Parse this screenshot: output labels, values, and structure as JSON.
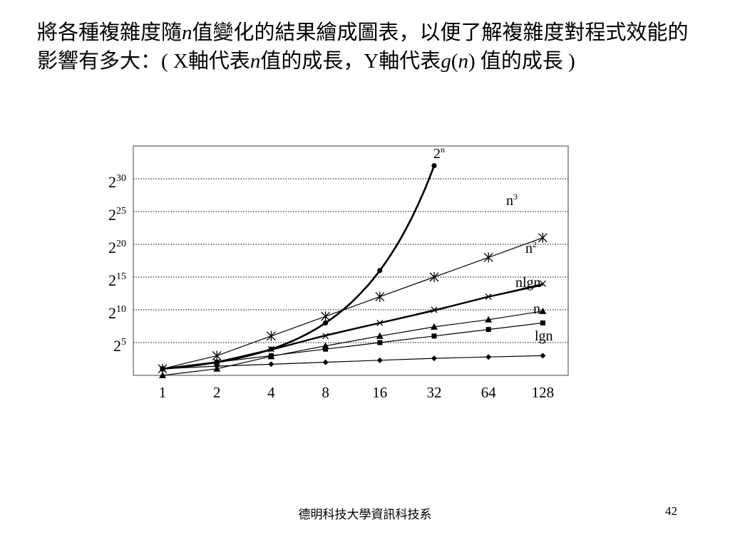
{
  "slide": {
    "title_parts": [
      {
        "text": "將各種複雜度隨",
        "italic": false
      },
      {
        "text": "n",
        "italic": true
      },
      {
        "text": "值變化的結果繪成圖表，以便了解複雜度對程式效能的影響有多大：( X軸代表",
        "italic": false
      },
      {
        "text": "n",
        "italic": true
      },
      {
        "text": "值的成長，Y軸代表",
        "italic": false
      },
      {
        "text": "g",
        "italic": true
      },
      {
        "text": "(",
        "italic": false
      },
      {
        "text": "n",
        "italic": true
      },
      {
        "text": ") 值的成長 )",
        "italic": false
      }
    ],
    "footer_center": "德明科技大學資訊科技系",
    "page_number": "42"
  },
  "chart_data": {
    "type": "line",
    "x_scale": "log2",
    "y_scale": "log2",
    "x_ticks": [
      1,
      2,
      4,
      8,
      16,
      32,
      64,
      128
    ],
    "x_tick_labels": [
      "1",
      "2",
      "4",
      "8",
      "16",
      "32",
      "64",
      "128"
    ],
    "y_ticks": [
      {
        "base": "2",
        "exp": "5"
      },
      {
        "base": "2",
        "exp": "10"
      },
      {
        "base": "2",
        "exp": "15"
      },
      {
        "base": "2",
        "exp": "20"
      },
      {
        "base": "2",
        "exp": "25"
      },
      {
        "base": "2",
        "exp": "30"
      }
    ],
    "y_tick_exponents": [
      5,
      10,
      15,
      20,
      25,
      30
    ],
    "ylim_exponent": [
      0,
      35
    ],
    "grid": "horizontal-dotted",
    "series": [
      {
        "name": "2",
        "sup": "n",
        "marker": "circle",
        "width": 2.6,
        "points": [
          [
            1,
            1
          ],
          [
            2,
            2
          ],
          [
            4,
            4
          ],
          [
            8,
            8
          ],
          [
            16,
            16
          ],
          [
            32,
            32
          ]
        ]
      },
      {
        "name": "n",
        "sup": "3",
        "marker": "star",
        "width": 1.2,
        "points": [
          [
            1,
            1
          ],
          [
            2,
            3
          ],
          [
            4,
            6
          ],
          [
            8,
            9
          ],
          [
            16,
            12
          ],
          [
            32,
            15
          ],
          [
            64,
            18
          ],
          [
            128,
            21
          ]
        ]
      },
      {
        "name": "n",
        "sup": "2",
        "marker": "cross",
        "width": 1.2,
        "points": [
          [
            1,
            1
          ],
          [
            2,
            2
          ],
          [
            4,
            4
          ],
          [
            8,
            6
          ],
          [
            16,
            8
          ],
          [
            32,
            10
          ],
          [
            64,
            12
          ],
          [
            128,
            14
          ]
        ]
      },
      {
        "name": "nlgn",
        "sup": "",
        "marker": "none",
        "width": 2.4,
        "points": [
          [
            1,
            1
          ],
          [
            2,
            2
          ],
          [
            4,
            3.9
          ],
          [
            8,
            6.1
          ],
          [
            16,
            8
          ],
          [
            32,
            9.9
          ],
          [
            64,
            12
          ],
          [
            128,
            13.8
          ]
        ]
      },
      {
        "name": "n",
        "sup": "",
        "marker": "triangle",
        "width": 1.2,
        "points": [
          [
            1,
            0
          ],
          [
            2,
            1
          ],
          [
            4,
            2.9
          ],
          [
            8,
            4.5
          ],
          [
            16,
            6
          ],
          [
            32,
            7.4
          ],
          [
            64,
            8.5
          ],
          [
            128,
            9.8
          ]
        ]
      },
      {
        "name": "lgn",
        "sup": "",
        "marker": "square",
        "width": 1.2,
        "points": [
          [
            1,
            1
          ],
          [
            2,
            2
          ],
          [
            4,
            3
          ],
          [
            8,
            4
          ],
          [
            16,
            5
          ],
          [
            32,
            6
          ],
          [
            64,
            7
          ],
          [
            128,
            8
          ]
        ]
      },
      {
        "name": "",
        "sup": "",
        "marker": "diamond",
        "width": 1.2,
        "points": [
          [
            1,
            1
          ],
          [
            2,
            1.4
          ],
          [
            4,
            1.7
          ],
          [
            8,
            2
          ],
          [
            16,
            2.3
          ],
          [
            32,
            2.6
          ],
          [
            64,
            2.8
          ],
          [
            128,
            3
          ]
        ]
      }
    ],
    "series_labels": [
      {
        "name": "2",
        "sup": "n"
      },
      {
        "name": "n",
        "sup": "3"
      },
      {
        "name": "n",
        "sup": "2"
      },
      {
        "name": "nlgn",
        "sup": ""
      },
      {
        "name": "n",
        "sup": ""
      },
      {
        "name": "lgn",
        "sup": ""
      }
    ]
  }
}
